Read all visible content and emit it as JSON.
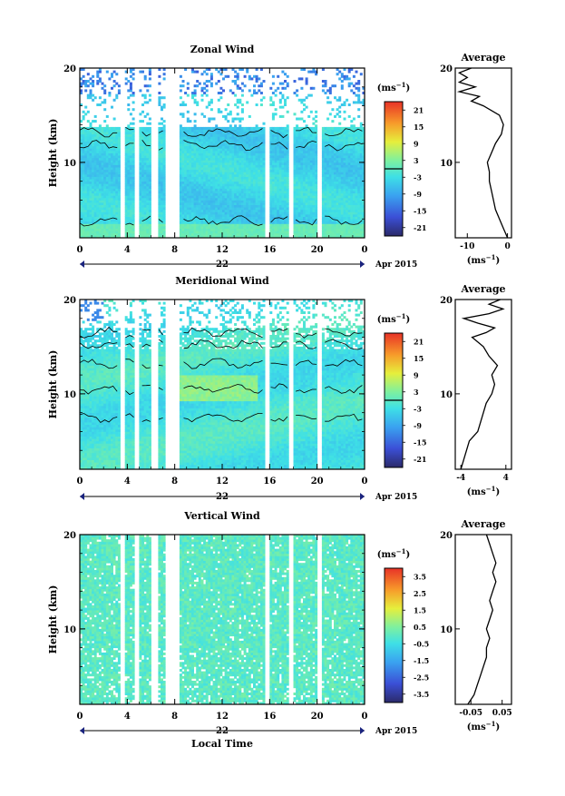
{
  "figure": {
    "x_axis_label": "Local Time",
    "average_title": "Average",
    "cb_unit_main": "(ms",
    "cb_unit_sup": "−1",
    "cb_unit_close": ")"
  },
  "chart_data": [
    {
      "type": "heatmap",
      "title": "Zonal Wind",
      "ylabel": "Height (km)",
      "ylim": [
        2,
        20
      ],
      "yticks": [
        10,
        20
      ],
      "xlim": [
        0,
        24
      ],
      "x_tick_labels": [
        "0",
        "4",
        "8",
        "12",
        "16",
        "20",
        "0"
      ],
      "date_label": "22",
      "date_suffix": "Apr 2015",
      "colorbar": {
        "ticks": [
          "21",
          "15",
          "9",
          "3",
          "-3",
          "-9",
          "-15",
          "-21"
        ],
        "range": [
          -24,
          24
        ],
        "zero_line": true
      },
      "gaps_hours": [
        [
          3.4,
          3.7
        ],
        [
          4.6,
          5.0
        ],
        [
          6.0,
          6.5
        ],
        [
          7.2,
          8.4
        ],
        [
          15.6,
          16.0
        ],
        [
          17.6,
          18.0
        ],
        [
          20.0,
          20.4
        ]
      ],
      "average": {
        "xlim": [
          -13,
          1
        ],
        "x_tick_labels": [
          "-10",
          "0"
        ],
        "x_tick_values": [
          -10,
          0
        ],
        "xlabel": "(ms",
        "xlabel_sup": "−1",
        "xlabel_close": ")",
        "heights": [
          2,
          3,
          4,
          5,
          6,
          7,
          8,
          9,
          10,
          11,
          12,
          13,
          14,
          15,
          16,
          16.5,
          17,
          17.5,
          18,
          18.5,
          19,
          19.5,
          20
        ],
        "values": [
          0,
          -1,
          -2,
          -3,
          -3.5,
          -4,
          -4.5,
          -4.5,
          -5,
          -4,
          -3,
          -1.5,
          -1,
          -2,
          -6,
          -9,
          -7,
          -12,
          -8,
          -12,
          -10,
          -12,
          -9
        ]
      }
    },
    {
      "type": "heatmap",
      "title": "Meridional Wind",
      "ylabel": "Height (km)",
      "ylim": [
        2,
        20
      ],
      "yticks": [
        10,
        20
      ],
      "xlim": [
        0,
        24
      ],
      "x_tick_labels": [
        "0",
        "4",
        "8",
        "12",
        "16",
        "20",
        "0"
      ],
      "date_label": "22",
      "date_suffix": "Apr 2015",
      "colorbar": {
        "ticks": [
          "21",
          "15",
          "9",
          "3",
          "-3",
          "-9",
          "-15",
          "-21"
        ],
        "range": [
          -24,
          24
        ],
        "zero_line": true
      },
      "gaps_hours": [
        [
          3.4,
          3.7
        ],
        [
          4.6,
          5.0
        ],
        [
          6.0,
          6.5
        ],
        [
          7.2,
          8.4
        ],
        [
          15.6,
          16.0
        ],
        [
          17.6,
          18.0
        ],
        [
          20.0,
          20.4
        ]
      ],
      "average": {
        "xlim": [
          -5,
          5
        ],
        "x_tick_labels": [
          "-4",
          "4"
        ],
        "x_tick_values": [
          -4,
          4
        ],
        "xlabel": "(ms",
        "xlabel_sup": "−1",
        "xlabel_close": ")",
        "heights": [
          2,
          3,
          4,
          5,
          6,
          7,
          8,
          9,
          10,
          11,
          12,
          13,
          14,
          15,
          16,
          16.5,
          17,
          17.5,
          18,
          18.5,
          19,
          19.5,
          20
        ],
        "values": [
          -4,
          -3.5,
          -3,
          -2.5,
          -1,
          -0.5,
          0,
          0.5,
          1.5,
          2,
          1.5,
          2.5,
          1,
          0,
          -2,
          0.5,
          2,
          -1,
          -3.5,
          1,
          3.5,
          1,
          3
        ]
      }
    },
    {
      "type": "heatmap",
      "title": "Vertical Wind",
      "ylabel": "Height (km)",
      "ylim": [
        2,
        20
      ],
      "yticks": [
        10,
        20
      ],
      "xlim": [
        0,
        24
      ],
      "x_tick_labels": [
        "0",
        "4",
        "8",
        "12",
        "16",
        "20",
        "0"
      ],
      "date_label": "22",
      "date_suffix": "Apr 2015",
      "colorbar": {
        "ticks": [
          "3.5",
          "2.5",
          "1.5",
          "0.5",
          "-0.5",
          "-1.5",
          "-2.5",
          "-3.5"
        ],
        "range": [
          -4,
          4
        ],
        "zero_line": false
      },
      "gaps_hours": [
        [
          3.4,
          3.7
        ],
        [
          4.6,
          5.0
        ],
        [
          6.0,
          6.5
        ],
        [
          7.2,
          8.4
        ],
        [
          15.6,
          16.0
        ],
        [
          17.6,
          18.0
        ],
        [
          20.0,
          20.4
        ]
      ],
      "average": {
        "xlim": [
          -0.1,
          0.08
        ],
        "x_tick_labels": [
          "-0.05",
          "0.05"
        ],
        "x_tick_values": [
          -0.05,
          0.05
        ],
        "xlabel": "(ms",
        "xlabel_sup": "−1",
        "xlabel_close": ")",
        "heights": [
          2,
          3,
          4,
          5,
          6,
          7,
          8,
          9,
          10,
          11,
          12,
          13,
          14,
          15,
          16,
          17,
          18,
          19,
          20
        ],
        "values": [
          -0.06,
          -0.04,
          -0.03,
          -0.02,
          -0.01,
          0.0,
          0.0,
          0.01,
          0.0,
          0.01,
          0.02,
          0.01,
          0.02,
          0.03,
          0.02,
          0.03,
          0.02,
          0.01,
          0.0
        ]
      }
    }
  ]
}
